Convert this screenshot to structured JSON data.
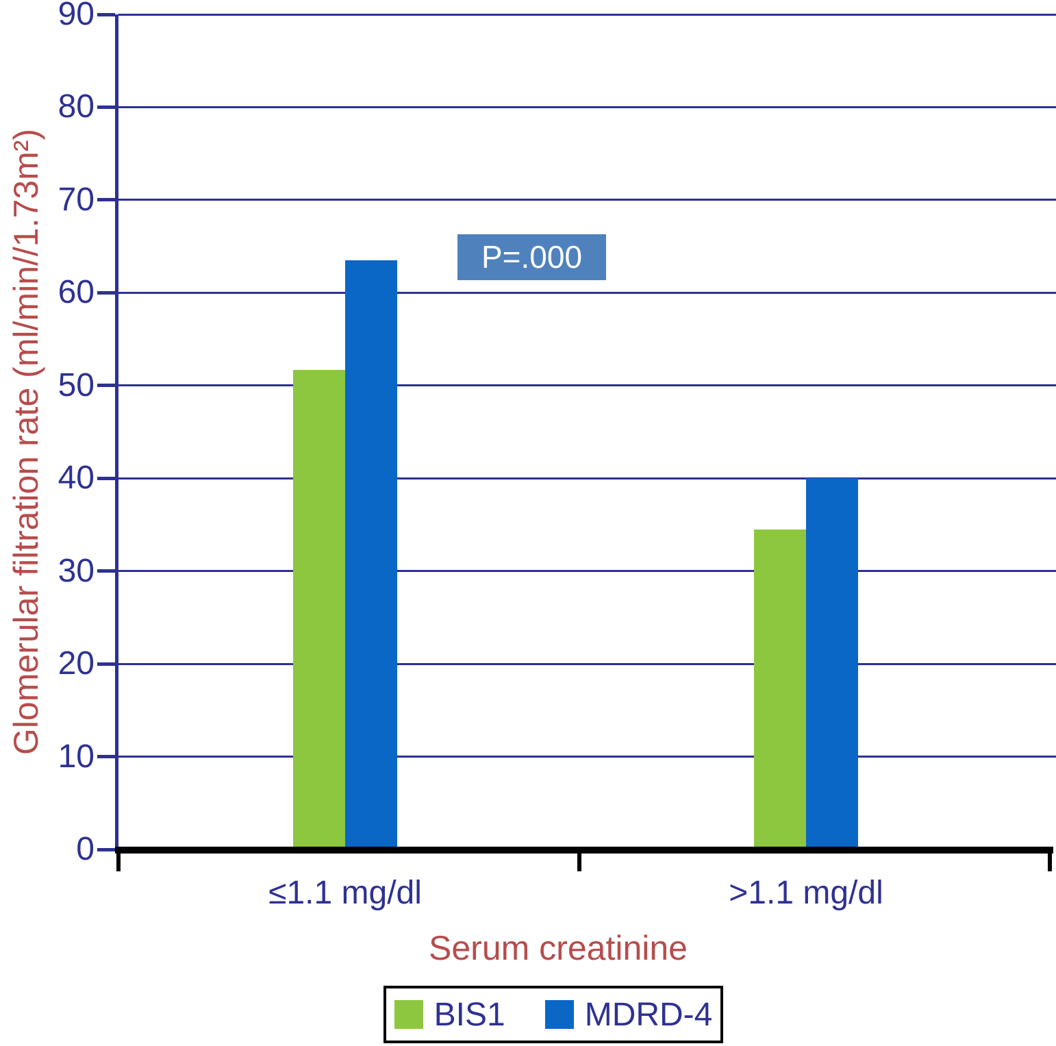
{
  "chart_data": {
    "type": "bar",
    "title": "",
    "categories": [
      "≤1.1 mg/dl",
      ">1.1 mg/dl"
    ],
    "series": [
      {
        "name": "BIS1",
        "color": "#8dc63f",
        "values": [
          51.7,
          34.5
        ]
      },
      {
        "name": "MDRD-4",
        "color": "#0a67c6",
        "values": [
          63.5,
          40.0
        ]
      }
    ],
    "xlabel": "Serum creatinine",
    "ylabel": "Glomerular filtration rate (ml/min//1.73m²)",
    "ylim": [
      0,
      90
    ],
    "yticks": [
      0,
      10,
      20,
      30,
      40,
      50,
      60,
      70,
      80,
      90
    ],
    "grid": "horizontal",
    "legend_position": "bottom",
    "annotation": {
      "text": "P=.000",
      "bg": "#4f81bd",
      "color": "#ffffff"
    }
  },
  "colors": {
    "background": "#ffffff",
    "axis_navy": "#2e3192",
    "axis_black": "#000000",
    "axis_label_red": "#b74c4c",
    "annotation_bg": "#4f81bd"
  }
}
